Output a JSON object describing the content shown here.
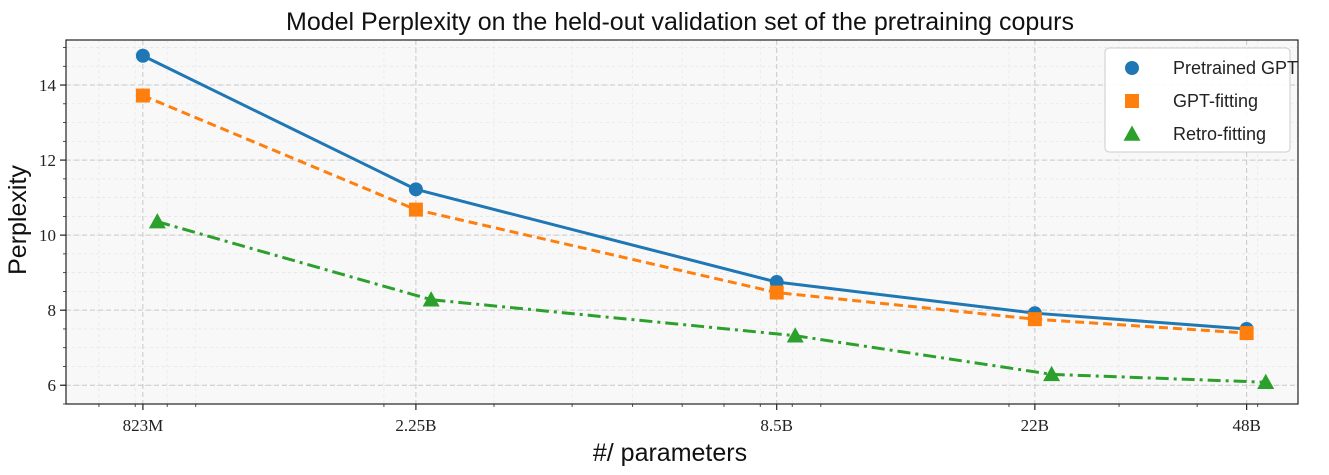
{
  "chart_data": {
    "type": "line",
    "title": "Model Perplexity on the held-out validation set of the pretraining copurs",
    "xlabel": "#/ parameters",
    "ylabel": "Perplexity",
    "xscale": "log",
    "xlim": [
      0.62,
      58
    ],
    "ylim": [
      5.5,
      15.2
    ],
    "grid": true,
    "legend_position": "top-right",
    "x_ticks": [
      {
        "value": 0.823,
        "label": "823M"
      },
      {
        "value": 2.25,
        "label": "2.25B"
      },
      {
        "value": 8.5,
        "label": "8.5B"
      },
      {
        "value": 22,
        "label": "22B"
      },
      {
        "value": 48,
        "label": "48B"
      }
    ],
    "y_ticks": [
      6,
      8,
      10,
      12,
      14
    ],
    "series": [
      {
        "name": "Pretrained GPT",
        "color": "#1f77b4",
        "marker": "circle",
        "linestyle": "solid",
        "x": [
          0.823,
          2.25,
          8.5,
          22,
          48
        ],
        "values": [
          14.78,
          11.22,
          8.75,
          7.92,
          7.5
        ]
      },
      {
        "name": "GPT-fitting",
        "color": "#ff7f0e",
        "marker": "square",
        "linestyle": "dashed",
        "x": [
          0.823,
          2.25,
          8.5,
          22,
          48
        ],
        "values": [
          13.72,
          10.68,
          8.47,
          7.76,
          7.39
        ]
      },
      {
        "name": "Retro-fitting",
        "color": "#2ca02c",
        "marker": "triangle",
        "linestyle": "dashdot",
        "x": [
          0.868,
          2.38,
          9.1,
          23.4,
          51.5
        ],
        "values": [
          10.36,
          8.28,
          7.32,
          6.29,
          6.08
        ]
      }
    ]
  }
}
